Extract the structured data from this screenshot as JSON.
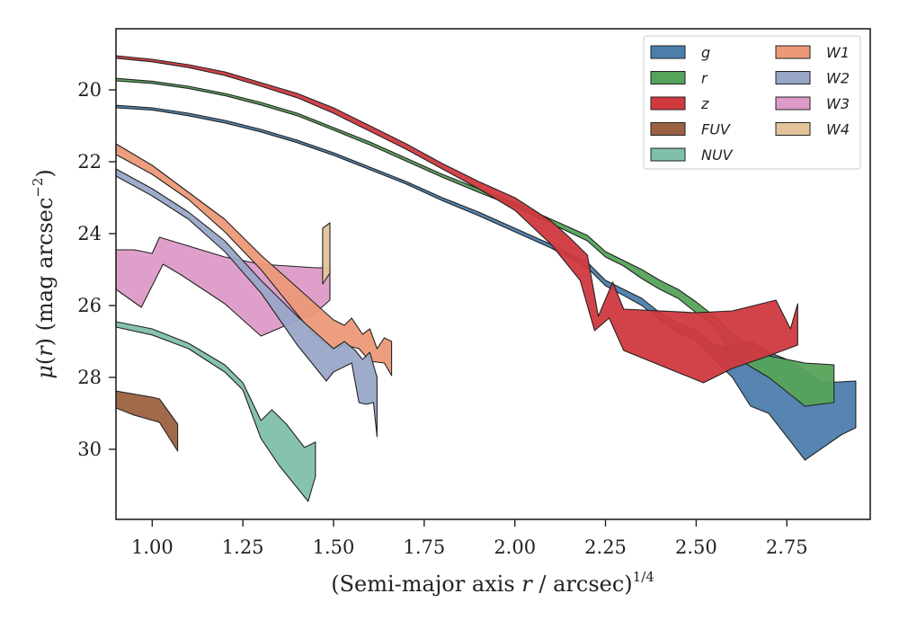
{
  "chart_data": {
    "type": "area",
    "xlabel": "(Semi-major axis r / arcsec)^1/4",
    "xlabel_parts": {
      "pre": "(Semi-major axis ",
      "var": "r",
      "post": " / arcsec)",
      "sup": "1/4"
    },
    "ylabel": "μ(r) (mag arcsec−2)",
    "ylabel_parts": {
      "mu": "μ",
      "open": "(",
      "var": "r",
      "close": ") (mag arcsec",
      "sup": "−2",
      "end": ")"
    },
    "xlim": [
      0.9,
      2.98
    ],
    "ylim": [
      31.95,
      18.3
    ],
    "y_inverted": true,
    "xticks": [
      "1.00",
      "1.25",
      "1.50",
      "1.75",
      "2.00",
      "2.25",
      "2.50",
      "2.75"
    ],
    "xtick_values": [
      1.0,
      1.25,
      1.5,
      1.75,
      2.0,
      2.25,
      2.5,
      2.75
    ],
    "yticks": [
      "20",
      "22",
      "24",
      "26",
      "28",
      "30"
    ],
    "ytick_values": [
      20,
      22,
      24,
      26,
      28,
      30
    ],
    "grid": false,
    "legend": {
      "position": "top-right",
      "columns": 2
    },
    "series": [
      {
        "name": "g",
        "color": "#4c7eac",
        "upper": [
          [
            0.9,
            20.43
          ],
          [
            1.0,
            20.5
          ],
          [
            1.1,
            20.65
          ],
          [
            1.2,
            20.85
          ],
          [
            1.3,
            21.1
          ],
          [
            1.4,
            21.4
          ],
          [
            1.5,
            21.75
          ],
          [
            1.6,
            22.15
          ],
          [
            1.7,
            22.55
          ],
          [
            1.8,
            23.0
          ],
          [
            1.9,
            23.4
          ],
          [
            2.0,
            23.85
          ],
          [
            2.1,
            24.3
          ],
          [
            2.2,
            24.8
          ],
          [
            2.25,
            25.3
          ],
          [
            2.3,
            25.55
          ],
          [
            2.35,
            25.8
          ],
          [
            2.4,
            26.2
          ],
          [
            2.45,
            26.5
          ],
          [
            2.5,
            26.7
          ],
          [
            2.55,
            27.1
          ],
          [
            2.6,
            27.2
          ],
          [
            2.65,
            27.0
          ],
          [
            2.7,
            27.3
          ],
          [
            2.75,
            27.5
          ],
          [
            2.8,
            27.8
          ],
          [
            2.85,
            28.15
          ],
          [
            2.94,
            28.1
          ]
        ],
        "lower": [
          [
            2.94,
            29.4
          ],
          [
            2.9,
            29.6
          ],
          [
            2.8,
            30.3
          ],
          [
            2.7,
            29.0
          ],
          [
            2.65,
            28.8
          ],
          [
            2.6,
            28.0
          ],
          [
            2.55,
            27.5
          ],
          [
            2.5,
            26.95
          ],
          [
            2.45,
            26.75
          ],
          [
            2.4,
            26.4
          ],
          [
            2.35,
            26.0
          ],
          [
            2.3,
            25.72
          ],
          [
            2.25,
            25.45
          ],
          [
            2.2,
            24.95
          ],
          [
            2.1,
            24.4
          ],
          [
            2.0,
            23.95
          ],
          [
            1.9,
            23.5
          ],
          [
            1.8,
            23.08
          ],
          [
            1.7,
            22.62
          ],
          [
            1.6,
            22.22
          ],
          [
            1.5,
            21.82
          ],
          [
            1.4,
            21.47
          ],
          [
            1.3,
            21.17
          ],
          [
            1.2,
            20.92
          ],
          [
            1.1,
            20.72
          ],
          [
            1.0,
            20.56
          ],
          [
            0.9,
            20.5
          ]
        ]
      },
      {
        "name": "r",
        "color": "#55a35a",
        "upper": [
          [
            0.9,
            19.68
          ],
          [
            1.0,
            19.76
          ],
          [
            1.1,
            19.9
          ],
          [
            1.2,
            20.1
          ],
          [
            1.3,
            20.35
          ],
          [
            1.4,
            20.65
          ],
          [
            1.5,
            21.05
          ],
          [
            1.6,
            21.45
          ],
          [
            1.7,
            21.9
          ],
          [
            1.8,
            22.35
          ],
          [
            1.9,
            22.75
          ],
          [
            2.0,
            23.15
          ],
          [
            2.1,
            23.6
          ],
          [
            2.2,
            24.05
          ],
          [
            2.25,
            24.5
          ],
          [
            2.3,
            24.75
          ],
          [
            2.35,
            25.0
          ],
          [
            2.4,
            25.3
          ],
          [
            2.45,
            25.55
          ],
          [
            2.5,
            25.9
          ],
          [
            2.55,
            26.3
          ],
          [
            2.6,
            26.8
          ],
          [
            2.7,
            27.4
          ],
          [
            2.8,
            27.6
          ],
          [
            2.88,
            27.65
          ]
        ],
        "lower": [
          [
            2.88,
            28.7
          ],
          [
            2.8,
            28.8
          ],
          [
            2.7,
            28.0
          ],
          [
            2.6,
            27.4
          ],
          [
            2.55,
            26.55
          ],
          [
            2.5,
            26.2
          ],
          [
            2.45,
            25.8
          ],
          [
            2.4,
            25.55
          ],
          [
            2.35,
            25.25
          ],
          [
            2.3,
            24.9
          ],
          [
            2.25,
            24.65
          ],
          [
            2.2,
            24.2
          ],
          [
            2.1,
            23.72
          ],
          [
            2.0,
            23.25
          ],
          [
            1.9,
            22.85
          ],
          [
            1.8,
            22.43
          ],
          [
            1.7,
            21.98
          ],
          [
            1.6,
            21.53
          ],
          [
            1.5,
            21.12
          ],
          [
            1.4,
            20.72
          ],
          [
            1.3,
            20.42
          ],
          [
            1.2,
            20.16
          ],
          [
            1.1,
            19.96
          ],
          [
            1.0,
            19.82
          ],
          [
            0.9,
            19.75
          ]
        ]
      },
      {
        "name": "z",
        "color": "#d0393f",
        "upper": [
          [
            0.9,
            19.05
          ],
          [
            1.0,
            19.15
          ],
          [
            1.1,
            19.3
          ],
          [
            1.2,
            19.5
          ],
          [
            1.3,
            19.8
          ],
          [
            1.4,
            20.1
          ],
          [
            1.5,
            20.5
          ],
          [
            1.6,
            21.0
          ],
          [
            1.7,
            21.5
          ],
          [
            1.8,
            22.05
          ],
          [
            1.9,
            22.55
          ],
          [
            2.0,
            23.0
          ],
          [
            2.1,
            23.65
          ],
          [
            2.15,
            24.1
          ],
          [
            2.2,
            24.6
          ],
          [
            2.23,
            26.3
          ],
          [
            2.27,
            25.35
          ],
          [
            2.3,
            26.1
          ],
          [
            2.5,
            26.2
          ],
          [
            2.6,
            26.15
          ],
          [
            2.72,
            25.85
          ],
          [
            2.76,
            26.65
          ],
          [
            2.78,
            25.95
          ]
        ],
        "lower": [
          [
            2.78,
            27.1
          ],
          [
            2.7,
            27.4
          ],
          [
            2.6,
            27.75
          ],
          [
            2.52,
            28.15
          ],
          [
            2.3,
            27.25
          ],
          [
            2.26,
            26.35
          ],
          [
            2.22,
            26.7
          ],
          [
            2.18,
            25.3
          ],
          [
            2.1,
            24.3
          ],
          [
            2.0,
            23.35
          ],
          [
            1.9,
            22.75
          ],
          [
            1.8,
            22.2
          ],
          [
            1.7,
            21.65
          ],
          [
            1.6,
            21.15
          ],
          [
            1.5,
            20.65
          ],
          [
            1.4,
            20.22
          ],
          [
            1.3,
            19.9
          ],
          [
            1.2,
            19.6
          ],
          [
            1.1,
            19.38
          ],
          [
            1.0,
            19.22
          ],
          [
            0.9,
            19.12
          ]
        ]
      },
      {
        "name": "FUV",
        "color": "#9b6241",
        "upper": [
          [
            0.9,
            28.38
          ],
          [
            1.0,
            28.55
          ],
          [
            1.02,
            28.6
          ],
          [
            1.07,
            29.3
          ]
        ],
        "lower": [
          [
            1.07,
            30.05
          ],
          [
            1.02,
            29.25
          ],
          [
            0.95,
            29.05
          ],
          [
            0.9,
            28.85
          ]
        ]
      },
      {
        "name": "NUV",
        "color": "#7fc0a8",
        "upper": [
          [
            0.9,
            26.45
          ],
          [
            1.0,
            26.65
          ],
          [
            1.1,
            27.05
          ],
          [
            1.2,
            27.65
          ],
          [
            1.25,
            28.15
          ],
          [
            1.3,
            29.2
          ],
          [
            1.33,
            28.9
          ],
          [
            1.37,
            29.3
          ],
          [
            1.42,
            29.95
          ],
          [
            1.45,
            29.8
          ]
        ],
        "lower": [
          [
            1.45,
            30.75
          ],
          [
            1.43,
            31.45
          ],
          [
            1.35,
            30.45
          ],
          [
            1.3,
            29.7
          ],
          [
            1.25,
            28.35
          ],
          [
            1.2,
            27.85
          ],
          [
            1.1,
            27.2
          ],
          [
            1.0,
            26.82
          ],
          [
            0.9,
            26.6
          ]
        ]
      },
      {
        "name": "W1",
        "color": "#eb9977",
        "upper": [
          [
            0.9,
            21.5
          ],
          [
            1.0,
            22.1
          ],
          [
            1.1,
            22.85
          ],
          [
            1.2,
            23.6
          ],
          [
            1.3,
            24.6
          ],
          [
            1.4,
            25.5
          ],
          [
            1.5,
            26.4
          ],
          [
            1.53,
            26.55
          ],
          [
            1.55,
            26.35
          ],
          [
            1.58,
            26.8
          ],
          [
            1.6,
            26.65
          ],
          [
            1.62,
            27.2
          ],
          [
            1.64,
            26.9
          ],
          [
            1.66,
            27.0
          ]
        ],
        "lower": [
          [
            1.66,
            27.95
          ],
          [
            1.64,
            27.6
          ],
          [
            1.6,
            27.55
          ],
          [
            1.57,
            27.2
          ],
          [
            1.53,
            27.1
          ],
          [
            1.5,
            27.2
          ],
          [
            1.45,
            26.85
          ],
          [
            1.4,
            26.25
          ],
          [
            1.3,
            25.0
          ],
          [
            1.2,
            23.95
          ],
          [
            1.1,
            23.05
          ],
          [
            1.0,
            22.35
          ],
          [
            0.9,
            21.8
          ]
        ]
      },
      {
        "name": "W2",
        "color": "#99a6c7",
        "upper": [
          [
            0.9,
            22.2
          ],
          [
            1.0,
            22.75
          ],
          [
            1.1,
            23.4
          ],
          [
            1.2,
            24.2
          ],
          [
            1.3,
            25.3
          ],
          [
            1.4,
            26.3
          ],
          [
            1.5,
            27.2
          ],
          [
            1.53,
            27.0
          ],
          [
            1.56,
            27.25
          ],
          [
            1.58,
            27.5
          ],
          [
            1.6,
            27.3
          ],
          [
            1.62,
            28.0
          ]
        ],
        "lower": [
          [
            1.62,
            29.65
          ],
          [
            1.61,
            28.7
          ],
          [
            1.59,
            28.75
          ],
          [
            1.57,
            28.7
          ],
          [
            1.55,
            27.6
          ],
          [
            1.5,
            27.85
          ],
          [
            1.48,
            28.1
          ],
          [
            1.4,
            27.1
          ],
          [
            1.3,
            25.65
          ],
          [
            1.2,
            24.5
          ],
          [
            1.1,
            23.6
          ],
          [
            1.0,
            22.95
          ],
          [
            0.9,
            22.4
          ]
        ]
      },
      {
        "name": "W3",
        "color": "#dc9bc8",
        "upper": [
          [
            0.9,
            24.45
          ],
          [
            0.95,
            24.45
          ],
          [
            1.0,
            24.55
          ],
          [
            1.02,
            24.1
          ],
          [
            1.2,
            24.65
          ],
          [
            1.3,
            24.85
          ],
          [
            1.45,
            24.95
          ],
          [
            1.49,
            24.95
          ]
        ],
        "lower": [
          [
            1.49,
            25.85
          ],
          [
            1.45,
            26.2
          ],
          [
            1.3,
            26.85
          ],
          [
            1.2,
            25.95
          ],
          [
            1.08,
            25.15
          ],
          [
            1.03,
            24.85
          ],
          [
            0.97,
            26.05
          ],
          [
            0.9,
            25.55
          ]
        ]
      },
      {
        "name": "W4",
        "color": "#e3c49a",
        "upper": [
          [
            1.47,
            23.85
          ],
          [
            1.49,
            23.7
          ]
        ],
        "lower": [
          [
            1.49,
            25.1
          ],
          [
            1.47,
            25.4
          ]
        ]
      }
    ]
  }
}
